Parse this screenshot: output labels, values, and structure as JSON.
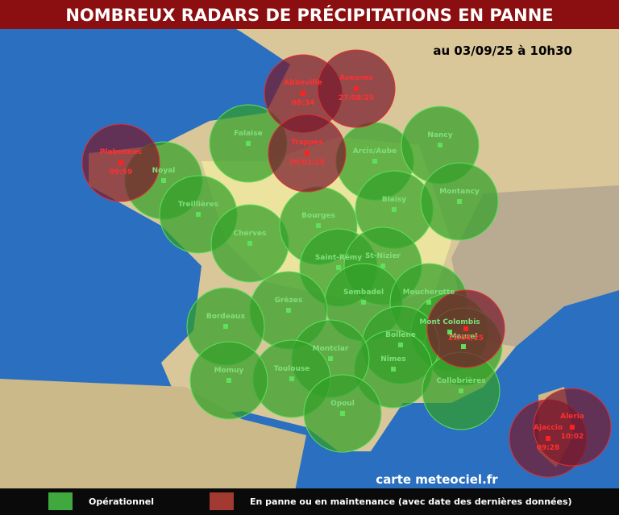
{
  "header": {
    "title": "NOMBREUX RADARS DE PRÉCIPITATIONS EN PANNE",
    "timestamp": "au 03/09/25 à 10h30"
  },
  "operational_radars": [
    "Falaise",
    "Noyal",
    "Treillières",
    "Cherves",
    "Bourges",
    "Arcis/Aube",
    "Nancy",
    "Blaisy",
    "Montancy",
    "Saint-Rémy",
    "St-Nizier",
    "Sembadel",
    "Grèzes",
    "Bordeaux",
    "Moucherotte",
    "Mont Colombis",
    "Maurel",
    "Bollène",
    "Nîmes",
    "Montclar",
    "Toulouse",
    "Momuy",
    "Opoul",
    "Collobrières"
  ],
  "down_radars": [
    {
      "name": "Abbeville",
      "last_data": "08:34"
    },
    {
      "name": "Avesnes",
      "last_data": "27/08/25"
    },
    {
      "name": "Trappes",
      "last_data": "20/01/25"
    },
    {
      "name": "Plabennec",
      "last_data": "09:59"
    },
    {
      "last_data": "22/04/25"
    },
    {
      "name": "Ajaccio",
      "last_data": "09:28"
    },
    {
      "name": "Aleria",
      "last_data": "10:02"
    }
  ],
  "credit": "carte meteociel.fr",
  "legend": [
    {
      "label": "Opérationnel"
    },
    {
      "label": "En panne ou en maintenance (avec date des dernières données)"
    }
  ]
}
